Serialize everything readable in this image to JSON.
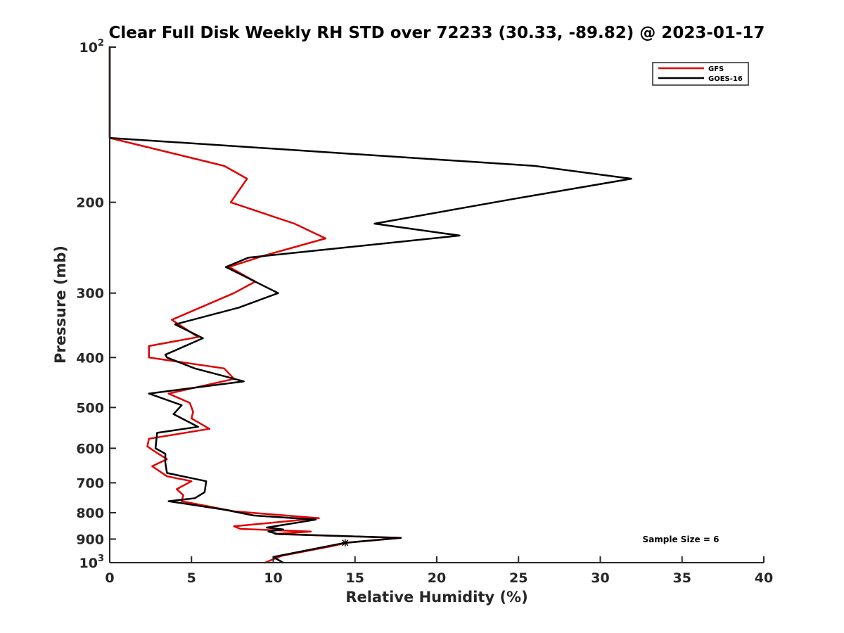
{
  "chart_data": {
    "type": "line",
    "title": "Clear Full Disk Weekly RH STD over 72233 (30.33, -89.82) @ 2023-01-17",
    "xlabel": "Relative Humidity (%)",
    "ylabel": "Pressure (mb)",
    "xlim": [
      0,
      40
    ],
    "ylim": [
      100,
      1000
    ],
    "y_scale": "log",
    "y_reversed": true,
    "x_ticks": [
      "0",
      "5",
      "10",
      "15",
      "20",
      "25",
      "30",
      "35",
      "40"
    ],
    "y_ticks": [
      {
        "value": 100,
        "label": "10",
        "sup": "2"
      },
      {
        "value": 200,
        "label": "200",
        "sup": ""
      },
      {
        "value": 300,
        "label": "300",
        "sup": ""
      },
      {
        "value": 400,
        "label": "400",
        "sup": ""
      },
      {
        "value": 500,
        "label": "500",
        "sup": ""
      },
      {
        "value": 600,
        "label": "600",
        "sup": ""
      },
      {
        "value": 700,
        "label": "700",
        "sup": ""
      },
      {
        "value": 800,
        "label": "800",
        "sup": ""
      },
      {
        "value": 900,
        "label": "900",
        "sup": ""
      },
      {
        "value": 1000,
        "label": "10",
        "sup": "3"
      }
    ],
    "legend_position": "top-right",
    "grid": false,
    "annotation": "Sample Size = 6",
    "series": [
      {
        "name": "GFS",
        "color": "#e00000",
        "points": [
          [
            0,
            100
          ],
          [
            0,
            150
          ],
          [
            7,
            170
          ],
          [
            8.4,
            180
          ],
          [
            7.4,
            200
          ],
          [
            11.3,
            220
          ],
          [
            13.2,
            235
          ],
          [
            9.4,
            254
          ],
          [
            7.3,
            267
          ],
          [
            8.9,
            285
          ],
          [
            7.6,
            300
          ],
          [
            3.8,
            338
          ],
          [
            5.4,
            365
          ],
          [
            2.4,
            380
          ],
          [
            2.4,
            400
          ],
          [
            7,
            420
          ],
          [
            7.6,
            440
          ],
          [
            3.6,
            470
          ],
          [
            4.9,
            490
          ],
          [
            5.1,
            510
          ],
          [
            5,
            525
          ],
          [
            6.1,
            550
          ],
          [
            2.4,
            575
          ],
          [
            2.3,
            595
          ],
          [
            2.8,
            610
          ],
          [
            3.5,
            630
          ],
          [
            2.6,
            650
          ],
          [
            3.5,
            680
          ],
          [
            5,
            695
          ],
          [
            4.1,
            720
          ],
          [
            4.5,
            740
          ],
          [
            4.4,
            760
          ],
          [
            7.6,
            795
          ],
          [
            12.8,
            820
          ],
          [
            7.6,
            850
          ],
          [
            8,
            860
          ],
          [
            12.3,
            870
          ],
          [
            10.1,
            880
          ],
          [
            17.8,
            895
          ],
          [
            14.5,
            915
          ],
          [
            13.5,
            930
          ],
          [
            10.5,
            970
          ],
          [
            9.5,
            1000
          ]
        ]
      },
      {
        "name": "GOES-16",
        "color": "#000000",
        "points": [
          [
            0,
            100
          ],
          [
            0,
            150
          ],
          [
            26,
            170
          ],
          [
            31.9,
            180
          ],
          [
            24.7,
            197
          ],
          [
            16.2,
            220
          ],
          [
            21.4,
            232
          ],
          [
            8.5,
            256
          ],
          [
            7.1,
            267
          ],
          [
            10.3,
            300
          ],
          [
            7.9,
            320
          ],
          [
            4,
            345
          ],
          [
            5.7,
            367
          ],
          [
            3.4,
            395
          ],
          [
            3.5,
            400
          ],
          [
            5.2,
            420
          ],
          [
            8.2,
            445
          ],
          [
            2.4,
            470
          ],
          [
            4.4,
            495
          ],
          [
            3.9,
            515
          ],
          [
            5.4,
            545
          ],
          [
            2.9,
            560
          ],
          [
            2.8,
            600
          ],
          [
            3.4,
            615
          ],
          [
            3.4,
            640
          ],
          [
            3.5,
            670
          ],
          [
            5.9,
            695
          ],
          [
            5.8,
            730
          ],
          [
            5.2,
            750
          ],
          [
            3.6,
            760
          ],
          [
            7.1,
            790
          ],
          [
            8.8,
            810
          ],
          [
            12.6,
            825
          ],
          [
            9.6,
            855
          ],
          [
            10.6,
            862
          ],
          [
            9.7,
            870
          ],
          [
            10.3,
            880
          ],
          [
            17.8,
            895
          ],
          [
            14.4,
            915
          ],
          [
            10,
            975
          ],
          [
            10.6,
            1000
          ]
        ]
      }
    ]
  }
}
